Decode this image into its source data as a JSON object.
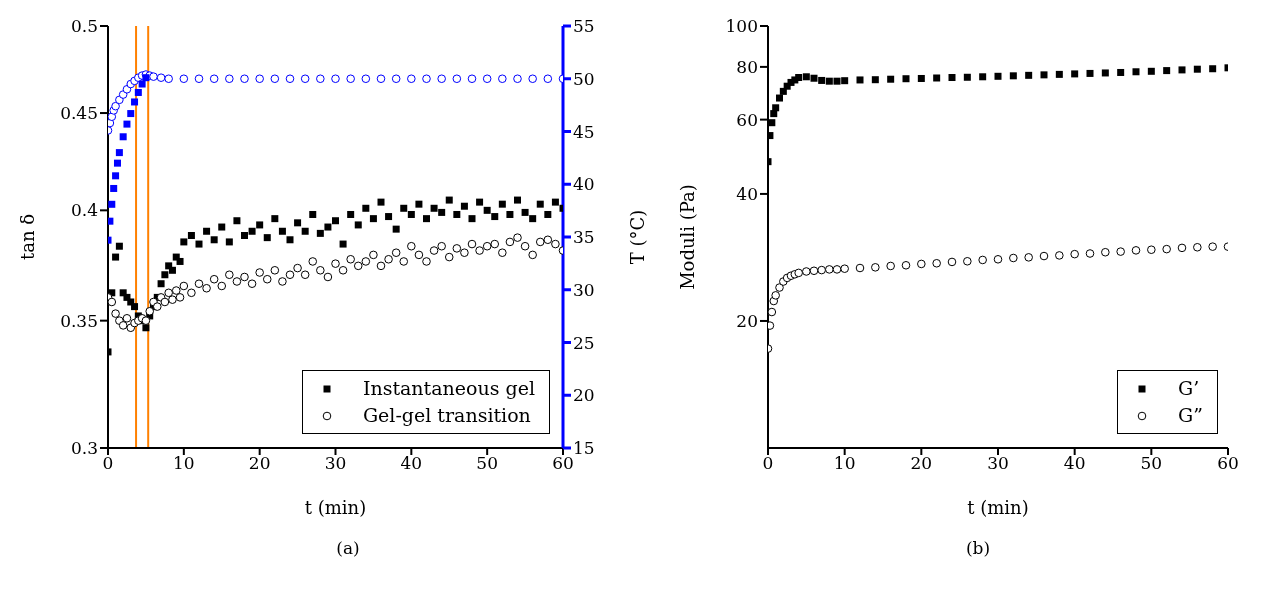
{
  "chart_data": [
    {
      "type": "scatter",
      "xlabel": "t (min)",
      "ylabel": "tan δ",
      "y2label": "T (°C)",
      "annotations": [
        "(a)"
      ],
      "xlim": [
        0,
        60
      ],
      "xticks": [
        0,
        10,
        20,
        30,
        40,
        50,
        60
      ],
      "ylim": [
        0.3,
        0.5
      ],
      "yticks": [
        0.3,
        0.35,
        0.4,
        0.45,
        0.5
      ],
      "log": "y",
      "y2lim": [
        15,
        55
      ],
      "y2ticks": [
        15,
        20,
        25,
        30,
        35,
        40,
        45,
        50,
        55
      ],
      "grid": false,
      "legend": "bottom right",
      "ref_lines": [
        {
          "axis": "x",
          "value": 3.7,
          "color": "#ff8000"
        },
        {
          "axis": "x",
          "value": 5.3,
          "color": "#ff8000"
        }
      ],
      "series": [
        {
          "name": "Instantaneous gel",
          "color": "#000000",
          "marker": "square",
          "x": [
            0,
            0.5,
            1,
            1.5,
            2,
            2.5,
            3,
            3.5,
            4,
            4.5,
            5,
            5.5,
            6,
            6.5,
            7,
            7.5,
            8,
            8.5,
            9,
            9.5,
            10,
            11,
            12,
            13,
            14,
            15,
            16,
            17,
            18,
            19,
            20,
            21,
            22,
            23,
            24,
            25,
            26,
            27,
            28,
            29,
            30,
            31,
            32,
            33,
            34,
            35,
            36,
            37,
            38,
            39,
            40,
            41,
            42,
            43,
            44,
            45,
            46,
            47,
            48,
            49,
            50,
            51,
            52,
            53,
            54,
            55,
            56,
            57,
            58,
            59,
            60
          ],
          "values": [
            0.337,
            0.362,
            0.378,
            0.383,
            0.362,
            0.36,
            0.358,
            0.356,
            0.352,
            0.35,
            0.347,
            0.352,
            0.356,
            0.36,
            0.366,
            0.37,
            0.374,
            0.372,
            0.378,
            0.376,
            0.385,
            0.388,
            0.384,
            0.39,
            0.386,
            0.392,
            0.385,
            0.395,
            0.388,
            0.39,
            0.393,
            0.387,
            0.396,
            0.39,
            0.386,
            0.394,
            0.39,
            0.398,
            0.389,
            0.392,
            0.395,
            0.384,
            0.398,
            0.393,
            0.401,
            0.396,
            0.404,
            0.397,
            0.391,
            0.401,
            0.398,
            0.403,
            0.396,
            0.401,
            0.399,
            0.405,
            0.398,
            0.402,
            0.396,
            0.404,
            0.4,
            0.397,
            0.403,
            0.398,
            0.405,
            0.399,
            0.396,
            0.403,
            0.398,
            0.404,
            0.401
          ]
        },
        {
          "name": "Gel-gel transition",
          "color": "#000000",
          "marker": "circle",
          "x": [
            0,
            0.5,
            1,
            1.5,
            2,
            2.5,
            3,
            3.5,
            4,
            4.5,
            5,
            5.5,
            6,
            6.5,
            7,
            7.5,
            8,
            8.5,
            9,
            9.5,
            10,
            11,
            12,
            13,
            14,
            15,
            16,
            17,
            18,
            19,
            20,
            21,
            22,
            23,
            24,
            25,
            26,
            27,
            28,
            29,
            30,
            31,
            32,
            33,
            34,
            35,
            36,
            37,
            38,
            39,
            40,
            41,
            42,
            43,
            44,
            45,
            46,
            47,
            48,
            49,
            50,
            51,
            52,
            53,
            54,
            55,
            56,
            57,
            58,
            59,
            60
          ],
          "values": [
            0.36,
            0.358,
            0.353,
            0.35,
            0.348,
            0.351,
            0.347,
            0.349,
            0.35,
            0.351,
            0.35,
            0.354,
            0.358,
            0.356,
            0.36,
            0.358,
            0.362,
            0.359,
            0.363,
            0.36,
            0.365,
            0.362,
            0.366,
            0.364,
            0.368,
            0.365,
            0.37,
            0.367,
            0.369,
            0.366,
            0.371,
            0.368,
            0.372,
            0.367,
            0.37,
            0.373,
            0.37,
            0.376,
            0.372,
            0.369,
            0.375,
            0.372,
            0.377,
            0.374,
            0.376,
            0.379,
            0.374,
            0.377,
            0.38,
            0.376,
            0.383,
            0.379,
            0.376,
            0.381,
            0.383,
            0.378,
            0.382,
            0.38,
            0.384,
            0.381,
            0.383,
            0.384,
            0.38,
            0.385,
            0.387,
            0.383,
            0.379,
            0.385,
            0.386,
            0.384,
            0.381
          ]
        },
        {
          "color": "#0000ff",
          "marker": "circle",
          "axis": "y2",
          "x": [
            0,
            0.25,
            0.5,
            0.75,
            1,
            1.5,
            2,
            2.5,
            3,
            3.5,
            4,
            4.5,
            5,
            5.5,
            6,
            7,
            8,
            10,
            12,
            14,
            16,
            18,
            20,
            22,
            24,
            26,
            28,
            30,
            32,
            34,
            36,
            38,
            40,
            42,
            44,
            46,
            48,
            50,
            52,
            54,
            56,
            58,
            60
          ],
          "values": [
            45.1,
            45.8,
            46.4,
            47,
            47.4,
            48,
            48.5,
            49,
            49.5,
            49.8,
            50.1,
            50.3,
            50.4,
            50.3,
            50.2,
            50.1,
            50,
            50,
            50,
            50,
            50,
            50,
            50,
            50,
            50,
            50,
            50,
            50,
            50,
            50,
            50,
            50,
            50,
            50,
            50,
            50,
            50,
            50,
            50,
            50,
            50,
            50,
            50
          ]
        },
        {
          "color": "#0000ff",
          "marker": "square",
          "axis": "y2",
          "x": [
            0,
            0.25,
            0.5,
            0.75,
            1,
            1.25,
            1.5,
            2,
            2.5,
            3,
            3.5,
            4,
            4.5,
            5
          ],
          "values": [
            34.7,
            36.5,
            38.1,
            39.6,
            40.8,
            42,
            43,
            44.5,
            45.7,
            46.7,
            47.8,
            48.7,
            49.5,
            50.1
          ]
        }
      ]
    },
    {
      "type": "scatter",
      "xlabel": "t (min)",
      "ylabel": "Moduli (Pa)",
      "annotations": [
        "(b)"
      ],
      "xlim": [
        0,
        60
      ],
      "xticks": [
        0,
        10,
        20,
        30,
        40,
        50,
        60
      ],
      "ylim": [
        10,
        100
      ],
      "yticks": [
        20,
        40,
        60,
        80,
        100
      ],
      "log": "y",
      "grid": false,
      "legend": "bottom right",
      "series": [
        {
          "name": "G’",
          "color": "#000000",
          "marker": "square",
          "x": [
            0,
            0.25,
            0.5,
            0.75,
            1,
            1.5,
            2,
            2.5,
            3,
            3.5,
            4,
            5,
            6,
            7,
            8,
            9,
            10,
            12,
            14,
            16,
            18,
            20,
            22,
            24,
            26,
            28,
            30,
            32,
            34,
            36,
            38,
            40,
            42,
            44,
            46,
            48,
            50,
            52,
            54,
            56,
            58,
            60
          ],
          "values": [
            47.7,
            55,
            59,
            62,
            64,
            67.5,
            70,
            72,
            73.5,
            74.5,
            75.5,
            75.8,
            75.2,
            74.3,
            74,
            74,
            74.2,
            74.5,
            74.6,
            74.8,
            75,
            75.1,
            75.3,
            75.5,
            75.6,
            75.8,
            76,
            76.2,
            76.4,
            76.6,
            76.8,
            77,
            77.2,
            77.4,
            77.6,
            77.9,
            78.1,
            78.4,
            78.7,
            79,
            79.2,
            79.6
          ]
        },
        {
          "name": "G”",
          "color": "#000000",
          "marker": "circle",
          "x": [
            0,
            0.25,
            0.5,
            0.75,
            1,
            1.5,
            2,
            2.5,
            3,
            3.5,
            4,
            5,
            6,
            7,
            8,
            9,
            10,
            12,
            14,
            16,
            18,
            20,
            22,
            24,
            26,
            28,
            30,
            32,
            34,
            36,
            38,
            40,
            42,
            44,
            46,
            48,
            50,
            52,
            54,
            56,
            58,
            60
          ],
          "values": [
            17.2,
            19.5,
            21,
            22.3,
            23,
            24,
            24.8,
            25.3,
            25.6,
            25.8,
            26,
            26.2,
            26.3,
            26.4,
            26.5,
            26.5,
            26.6,
            26.7,
            26.8,
            27,
            27.1,
            27.3,
            27.4,
            27.6,
            27.7,
            27.9,
            28,
            28.2,
            28.3,
            28.5,
            28.6,
            28.8,
            28.9,
            29.1,
            29.2,
            29.4,
            29.5,
            29.6,
            29.8,
            29.9,
            30,
            30
          ]
        }
      ]
    }
  ]
}
